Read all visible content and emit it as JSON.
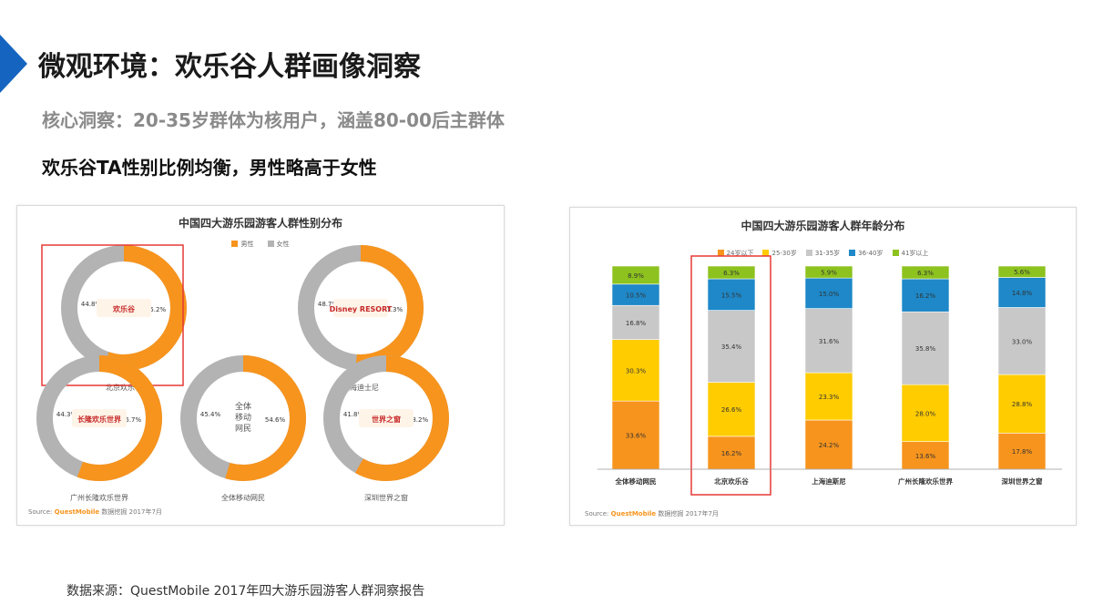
{
  "page": {
    "title": "微观环境：欢乐谷人群画像洞察",
    "subtitle": "核心洞察：20-35岁群体为核用户，涵盖80-00后主群体",
    "heading": "欢乐谷TA性别比例均衡，男性略高于女性",
    "footer": "数据来源：QuestMobile 2017年四大游乐园游客人群洞察报告"
  },
  "colors": {
    "accent": "#1565c0",
    "male": "#f7941d",
    "female": "#b3b3b3",
    "highlight": "#e53935"
  },
  "chart_data": [
    {
      "type": "pie",
      "title": "中国四大游乐园游客人群性别分布",
      "legend": [
        "男性",
        "女性"
      ],
      "legend_position": "top",
      "source_prefix": "Source:",
      "source_brand": "QuestMobile",
      "source_suffix": "数据挖掘 2017年7月",
      "donuts": [
        {
          "name": "北京欢乐谷",
          "logo_text": "欢乐谷",
          "male": 55.2,
          "female": 44.8,
          "male_label": "55.2%",
          "female_label": "44.8%",
          "highlighted": true
        },
        {
          "name": "上海迪士尼",
          "logo_text": "Disney RESORT",
          "male": 51.3,
          "female": 48.7,
          "male_label": "51.3%",
          "female_label": "48.7%",
          "highlighted": false
        },
        {
          "name": "广州长隆欢乐世界",
          "logo_text": "长隆欢乐世界",
          "male": 55.7,
          "female": 44.3,
          "male_label": "55.7%",
          "female_label": "44.3%",
          "highlighted": false
        },
        {
          "name": "全体移动网民",
          "center_lines": [
            "全体",
            "移动",
            "网民"
          ],
          "male": 54.6,
          "female": 45.4,
          "male_label": "54.6%",
          "female_label": "45.4%",
          "highlighted": false
        },
        {
          "name": "深圳世界之窗",
          "logo_text": "世界之窗",
          "male": 58.2,
          "female": 41.8,
          "male_label": "58.2%",
          "female_label": "41.8%",
          "highlighted": false
        }
      ]
    },
    {
      "type": "bar",
      "stacked": true,
      "percent": true,
      "title": "中国四大游乐园游客人群年龄分布",
      "categories": [
        "全体移动网民",
        "北京欢乐谷",
        "上海迪斯尼",
        "广州长隆欢乐世界",
        "深圳世界之窗"
      ],
      "series": [
        {
          "name": "24岁以下",
          "color": "#f7941d",
          "values": [
            33.6,
            16.2,
            24.2,
            13.6,
            17.8
          ],
          "labels": [
            "33.6%",
            "16.2%",
            "24.2%",
            "13.6%",
            "17.8%"
          ]
        },
        {
          "name": "25-30岁",
          "color": "#ffcc00",
          "values": [
            30.3,
            26.6,
            23.3,
            28.0,
            28.8
          ],
          "labels": [
            "30.3%",
            "26.6%",
            "23.3%",
            "28.0%",
            "28.8%"
          ]
        },
        {
          "name": "31-35岁",
          "color": "#c8c8c8",
          "values": [
            16.8,
            35.4,
            31.6,
            35.8,
            33.0
          ],
          "labels": [
            "16.8%",
            "35.4%",
            "31.6%",
            "35.8%",
            "33.0%"
          ]
        },
        {
          "name": "36-40岁",
          "color": "#1e88c8",
          "values": [
            10.5,
            15.5,
            15.0,
            16.2,
            14.8
          ],
          "labels": [
            "10.5%",
            "15.5%",
            "15.0%",
            "16.2%",
            "14.8%"
          ]
        },
        {
          "name": "41岁以上",
          "color": "#8dc21f",
          "values": [
            8.9,
            6.3,
            5.9,
            6.3,
            5.6
          ],
          "labels": [
            "8.9%",
            "6.3%",
            "5.9%",
            "6.3%",
            "5.6%"
          ]
        }
      ],
      "legend_position": "top",
      "highlight_category": "北京欢乐谷",
      "source_prefix": "Source:",
      "source_brand": "QuestMobile",
      "source_suffix": "数据挖掘 2017年7月"
    }
  ]
}
